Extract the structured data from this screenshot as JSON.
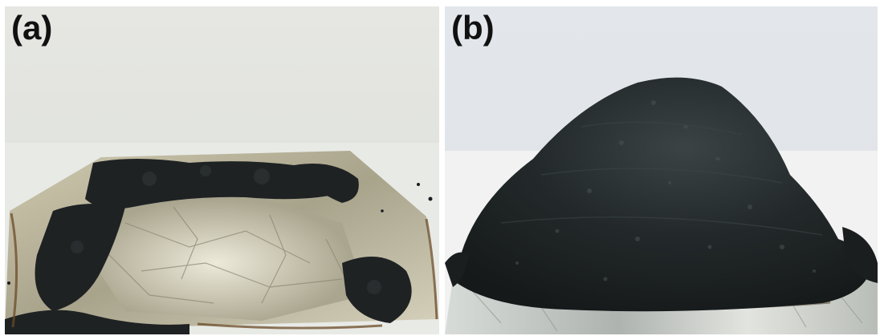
{
  "panels": [
    {
      "label": "(a)",
      "subject": "foil-tray-with-flattened-black-residue",
      "colors": {
        "background": "#e4e6e3",
        "table": "#eceeea",
        "foil": "#b8b39c",
        "foil_light": "#e6e2cf",
        "residue": "#1f2324",
        "scorch": "#6b4a25"
      }
    },
    {
      "label": "(b)",
      "subject": "foil-base-with-domed-black-foam",
      "colors": {
        "background": "#e2e6ea",
        "table": "#f2f3f2",
        "foam": "#1c2022",
        "foam_highlight": "#3a4142",
        "foil": "#c9cdc8",
        "scorch": "#5a4a36"
      }
    }
  ]
}
